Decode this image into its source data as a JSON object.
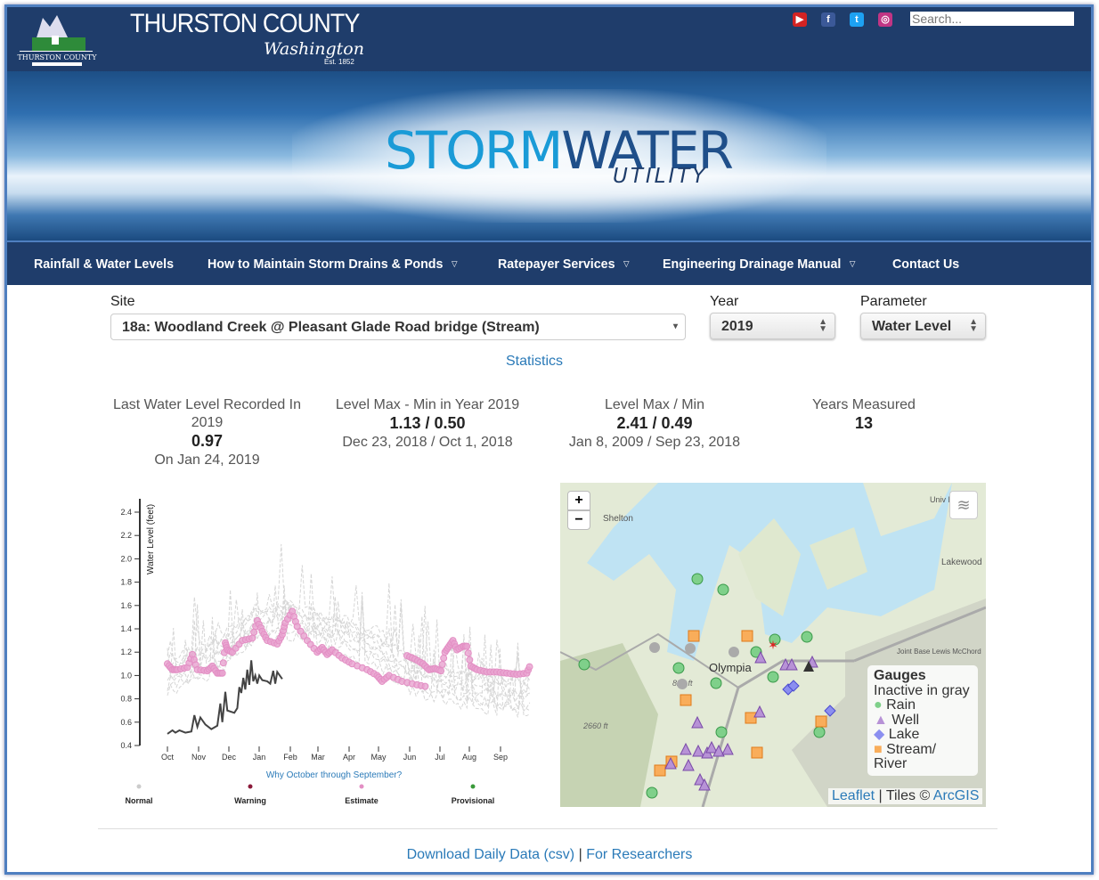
{
  "header": {
    "county": "THURSTON COUNTY",
    "state": "Washington",
    "established": "Est. 1852",
    "logo_text": "THURSTON COUNTY",
    "search_placeholder": "Search...",
    "social": [
      {
        "name": "youtube-icon",
        "glyph": "▶",
        "color": "#d32323"
      },
      {
        "name": "facebook-icon",
        "glyph": "f",
        "color": "#3b5998"
      },
      {
        "name": "twitter-icon",
        "glyph": "t",
        "color": "#1da1f2"
      },
      {
        "name": "instagram-icon",
        "glyph": "◎",
        "color": "#c13584"
      }
    ]
  },
  "banner": {
    "storm": "STORM",
    "water": "WATER",
    "utility": "UTILITY"
  },
  "nav": [
    {
      "label": "Rainfall & Water Levels",
      "dropdown": false
    },
    {
      "label": "How to Maintain Storm Drains & Ponds",
      "dropdown": true
    },
    {
      "label": "Ratepayer Services",
      "dropdown": true
    },
    {
      "label": "Engineering Drainage Manual",
      "dropdown": true
    },
    {
      "label": "Contact Us",
      "dropdown": false
    }
  ],
  "filters": {
    "site_label": "Site",
    "site_value": "18a: Woodland Creek @ Pleasant Glade Road bridge (Stream)",
    "year_label": "Year",
    "year_value": "2019",
    "param_label": "Parameter",
    "param_value": "Water Level"
  },
  "statistics_link": "Statistics",
  "stats": [
    {
      "title": "Last Water Level Recorded In",
      "sub": "2019",
      "value": "0.97",
      "detail": "On Jan 24, 2019"
    },
    {
      "title": "Level Max - Min in Year 2019",
      "value": "1.13 / 0.50",
      "detail": "Dec 23, 2018 / Oct 1, 2018"
    },
    {
      "title": "Level Max / Min",
      "value": "2.41 / 0.49",
      "detail": "Jan 8, 2009 / Sep 23, 2018"
    },
    {
      "title": "Years Measured",
      "value": "13"
    }
  ],
  "chart_data": {
    "type": "line",
    "ylabel": "Water Level (feet)",
    "xlabel": "",
    "ylim": [
      0.4,
      2.45
    ],
    "y_ticks": [
      "0.4",
      "0.6",
      "0.8",
      "1.0",
      "1.2",
      "1.4",
      "1.6",
      "1.8",
      "2.0",
      "2.2",
      "2.4"
    ],
    "x_ticks": [
      "Oct",
      "Nov",
      "Dec",
      "Jan",
      "Feb",
      "Mar",
      "Apr",
      "May",
      "Jun",
      "Jul",
      "Aug",
      "Sep"
    ],
    "x_unit": "days since Oct 1",
    "current_year": {
      "name": "2019",
      "color": "#444444",
      "x": [
        0,
        5,
        8,
        12,
        18,
        24,
        27,
        30,
        33,
        38,
        44,
        50,
        53,
        55,
        58,
        60,
        67,
        70,
        72,
        74,
        76,
        78,
        80,
        82,
        84,
        86,
        88,
        90,
        92,
        95,
        100,
        103,
        106,
        108,
        110,
        115
      ],
      "y": [
        0.5,
        0.53,
        0.51,
        0.53,
        0.51,
        0.52,
        0.66,
        0.56,
        0.64,
        0.58,
        0.54,
        0.57,
        0.76,
        0.6,
        0.86,
        0.7,
        0.68,
        0.72,
        0.9,
        0.85,
        0.98,
        0.88,
        1.05,
        0.92,
        1.13,
        0.95,
        1.0,
        0.93,
        1.0,
        0.96,
        0.95,
        0.93,
        1.04,
        0.93,
        1.03,
        0.97
      ]
    },
    "estimate": [
      {
        "x": [
          0,
          5,
          10,
          20,
          25,
          30,
          40,
          45,
          50,
          55,
          58,
          60,
          65,
          75,
          85,
          90,
          95,
          100,
          110,
          115,
          118,
          125,
          130,
          140,
          150,
          155,
          160,
          165,
          175,
          185,
          200,
          210,
          215,
          222,
          235,
          250,
          262
        ],
        "y": [
          1.1,
          1.05,
          1.05,
          1.07,
          1.18,
          1.05,
          1.04,
          1.08,
          1.02,
          1.02,
          1.28,
          1.22,
          1.2,
          1.3,
          1.32,
          1.47,
          1.38,
          1.3,
          1.27,
          1.35,
          1.45,
          1.55,
          1.42,
          1.3,
          1.2,
          1.24,
          1.18,
          1.22,
          1.15,
          1.1,
          1.05,
          1.0,
          0.95,
          1.0,
          0.95,
          0.92,
          0.9
        ]
      },
      {
        "x": [
          240,
          248,
          256,
          262,
          268,
          274,
          278,
          282,
          286,
          290,
          296,
          300,
          304,
          310,
          320,
          330,
          340,
          350,
          360,
          364
        ],
        "y": [
          1.17,
          1.14,
          1.1,
          1.05,
          1.06,
          1.04,
          1.2,
          1.25,
          1.3,
          1.22,
          1.25,
          1.25,
          1.08,
          1.05,
          1.03,
          1.03,
          1.02,
          1.01,
          1.02,
          1.1
        ]
      }
    ],
    "normal_baseline": {
      "x": [
        0,
        30,
        60,
        90,
        120,
        150,
        180,
        210,
        240,
        270,
        300,
        330,
        364
      ],
      "y": [
        0.95,
        1.05,
        1.2,
        1.4,
        1.45,
        1.35,
        1.3,
        1.2,
        1.0,
        0.9,
        0.85,
        0.8,
        0.78
      ]
    },
    "legend": [
      {
        "label": "Normal",
        "color": "#cccccc"
      },
      {
        "label": "Warning",
        "color": "#8b1a3a"
      },
      {
        "label": "Estimate",
        "color": "#e38fc4"
      },
      {
        "label": "Provisional",
        "color": "#3a9a3a"
      }
    ],
    "note": "Why October through September?"
  },
  "map": {
    "labels": [
      "Shelton",
      "Olympia",
      "Lakewood",
      "Joint Base Lewis McChord",
      "820 ft",
      "2660 ft",
      "Univ Pl"
    ],
    "legend_title": "Gauges",
    "legend_sub": "Inactive in gray",
    "legend_items": [
      {
        "label": "Rain",
        "shape": "circle",
        "color": "#7fd08a"
      },
      {
        "label": "Well",
        "shape": "triangle",
        "color": "#b792d6"
      },
      {
        "label": "Lake",
        "shape": "diamond",
        "color": "#8b8ff0"
      },
      {
        "label": "Stream/ River",
        "shape": "square",
        "color": "#f9ad5a"
      }
    ],
    "zoom_in": "+",
    "zoom_out": "−",
    "attribution_leaflet": "Leaflet",
    "attribution_sep": "| Tiles ©",
    "attribution_arcgis": "ArcGIS"
  },
  "footer": {
    "download": "Download Daily Data (csv)",
    "sep": "|",
    "researchers": "For Researchers"
  }
}
